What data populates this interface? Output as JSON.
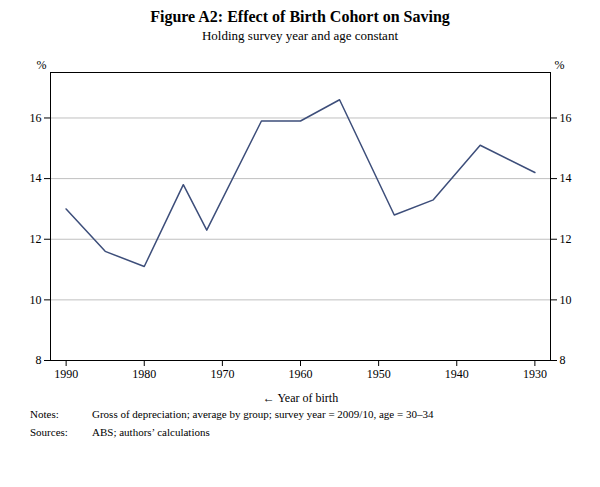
{
  "chart_data": {
    "type": "line",
    "title": "Figure A2: Effect of Birth Cohort on Saving",
    "subtitle": "Holding survey year and age constant",
    "xlabel": "Year of birth",
    "ylabel": "%",
    "y2label": "%",
    "x": [
      1990,
      1985,
      1980,
      1975,
      1972,
      1965,
      1960,
      1955,
      1948,
      1943,
      1937,
      1930
    ],
    "values": [
      13.0,
      11.6,
      11.1,
      13.8,
      12.3,
      15.9,
      15.9,
      16.6,
      12.8,
      13.3,
      15.1,
      14.2
    ],
    "color": "#3d4e7a",
    "xlim": [
      1992,
      1928
    ],
    "xticks": [
      1990,
      1980,
      1970,
      1960,
      1950,
      1940,
      1930
    ],
    "ylim": [
      8,
      17.5
    ],
    "yticks": [
      8,
      10,
      12,
      14,
      16
    ],
    "y2lim": [
      8,
      17.5
    ],
    "y2ticks": [
      8,
      10,
      12,
      14,
      16
    ],
    "grid": "y",
    "notes_label": "Notes:",
    "notes": "Gross of depreciation; average by group; survey year = 2009/10, age = 30–34",
    "sources_label": "Sources:",
    "sources": "ABS; authors’ calculations"
  }
}
